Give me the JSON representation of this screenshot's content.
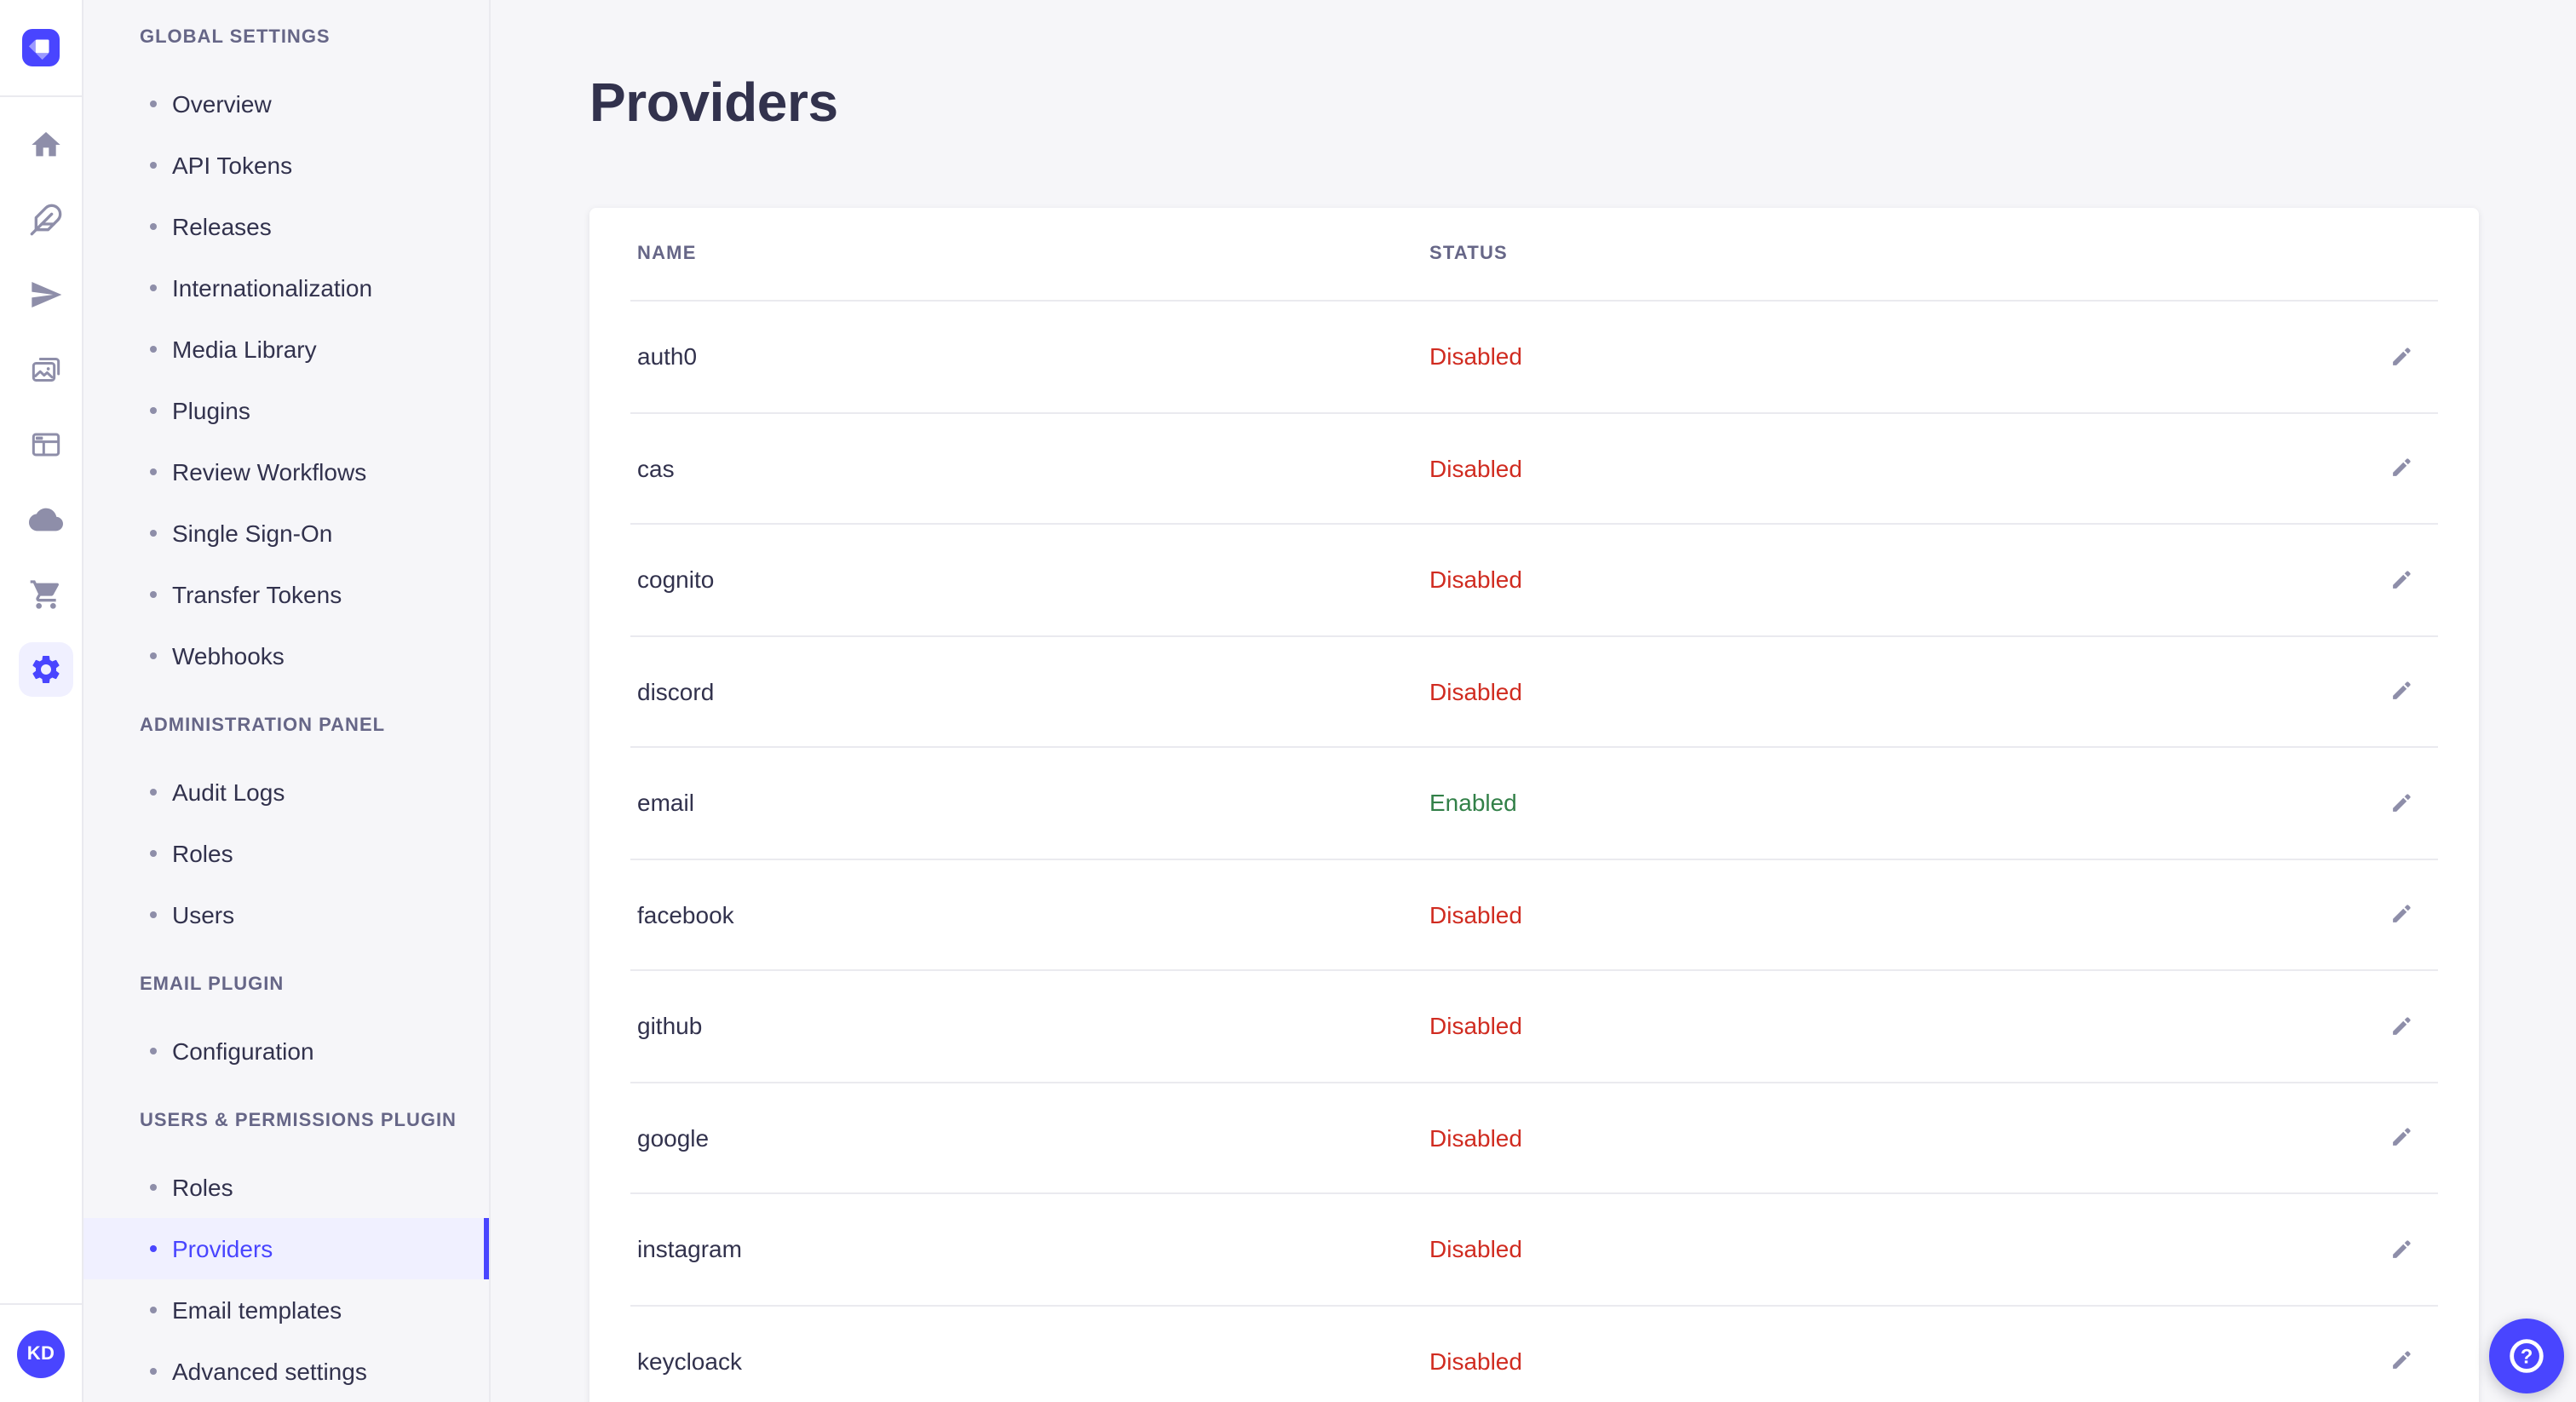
{
  "brand": {
    "accent": "#4945ff"
  },
  "colors": {
    "enabled": "#328048",
    "disabled": "#d02b20",
    "icon": "#8e8ea9",
    "border": "#eaeaef",
    "text": "#32324d",
    "muted": "#666687"
  },
  "rail": {
    "logo_name": "strapi-logo",
    "items": [
      {
        "name": "home"
      },
      {
        "name": "content-type-builder"
      },
      {
        "name": "deploy"
      },
      {
        "name": "media-library"
      },
      {
        "name": "content-manager"
      },
      {
        "name": "cloud"
      },
      {
        "name": "marketplace"
      },
      {
        "name": "settings",
        "active": true
      }
    ],
    "avatar_initials": "KD"
  },
  "sidebar": {
    "sections": [
      {
        "label": "GLOBAL SETTINGS",
        "items": [
          {
            "label": "Overview"
          },
          {
            "label": "API Tokens"
          },
          {
            "label": "Releases"
          },
          {
            "label": "Internationalization"
          },
          {
            "label": "Media Library"
          },
          {
            "label": "Plugins"
          },
          {
            "label": "Review Workflows"
          },
          {
            "label": "Single Sign-On"
          },
          {
            "label": "Transfer Tokens"
          },
          {
            "label": "Webhooks"
          }
        ]
      },
      {
        "label": "ADMINISTRATION PANEL",
        "items": [
          {
            "label": "Audit Logs"
          },
          {
            "label": "Roles"
          },
          {
            "label": "Users"
          }
        ]
      },
      {
        "label": "EMAIL PLUGIN",
        "items": [
          {
            "label": "Configuration"
          }
        ]
      },
      {
        "label": "USERS & PERMISSIONS PLUGIN",
        "items": [
          {
            "label": "Roles"
          },
          {
            "label": "Providers",
            "active": true
          },
          {
            "label": "Email templates"
          },
          {
            "label": "Advanced settings"
          }
        ]
      }
    ]
  },
  "main": {
    "title": "Providers",
    "table": {
      "headers": [
        "NAME",
        "STATUS"
      ],
      "rows": [
        {
          "name": "auth0",
          "status": "Disabled"
        },
        {
          "name": "cas",
          "status": "Disabled"
        },
        {
          "name": "cognito",
          "status": "Disabled"
        },
        {
          "name": "discord",
          "status": "Disabled"
        },
        {
          "name": "email",
          "status": "Enabled"
        },
        {
          "name": "facebook",
          "status": "Disabled"
        },
        {
          "name": "github",
          "status": "Disabled"
        },
        {
          "name": "google",
          "status": "Disabled"
        },
        {
          "name": "instagram",
          "status": "Disabled"
        },
        {
          "name": "keycloack",
          "status": "Disabled"
        }
      ]
    }
  },
  "help": {
    "label": "?"
  }
}
